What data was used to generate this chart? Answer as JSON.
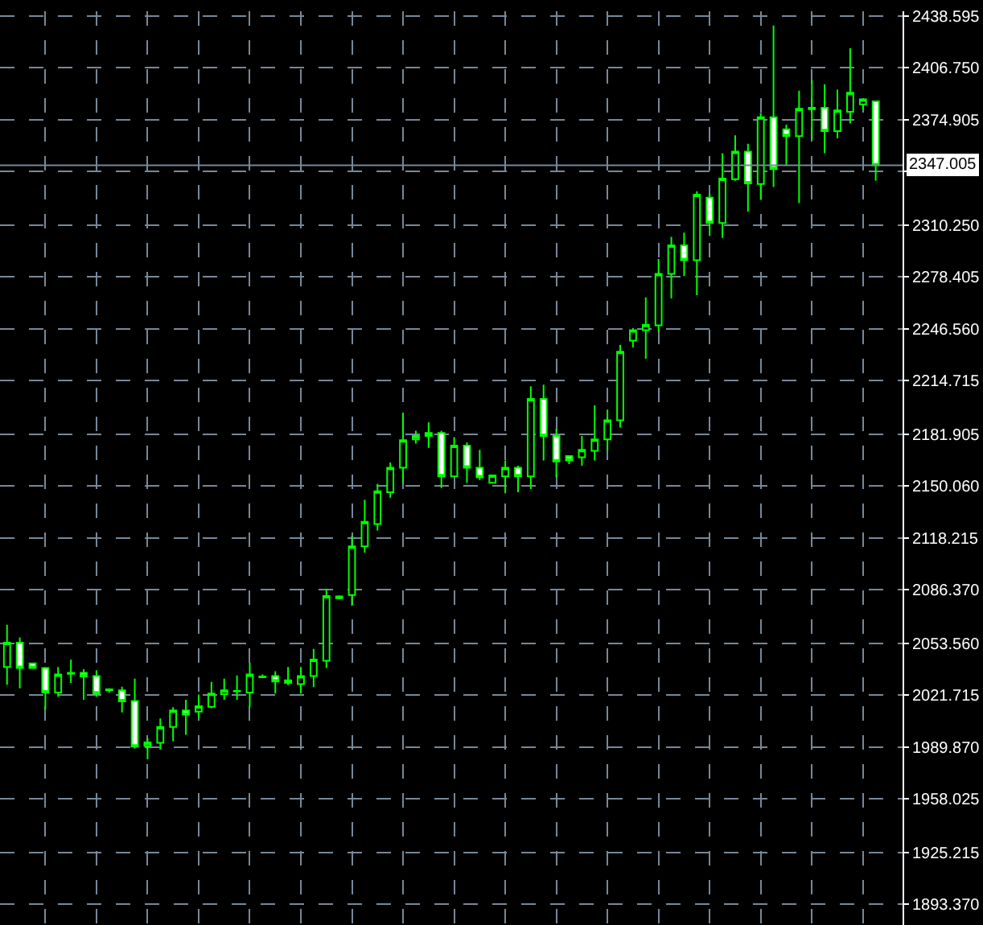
{
  "chart_data": {
    "type": "candlestick",
    "color": "#00ff00",
    "categories": [
      null,
      null,
      null,
      null,
      null,
      null,
      null,
      null,
      null,
      null,
      null,
      null,
      null,
      null,
      null,
      null,
      null,
      null,
      null,
      null,
      null,
      null,
      null,
      null,
      null,
      null,
      null,
      null,
      null,
      null,
      null,
      null,
      null,
      null,
      null,
      null,
      null,
      null,
      null,
      null,
      null,
      null,
      null,
      null,
      null,
      null,
      null,
      null,
      null,
      null,
      null,
      null,
      null,
      null,
      null,
      null,
      null,
      null,
      null,
      null,
      null,
      null,
      null,
      null,
      null,
      null,
      null,
      null,
      null
    ],
    "ohlc": [
      [
        2039.0,
        2065.0,
        2028.0,
        2054.0
      ],
      [
        2054.0,
        2057.2,
        2026.0,
        2038.4
      ],
      [
        2041.3,
        2041.6,
        2038.0,
        2038.4
      ],
      [
        2038.4,
        2039.0,
        2013.0,
        2023.4
      ],
      [
        2023.4,
        2039.0,
        2020.8,
        2034.5
      ],
      [
        2034.8,
        2043.6,
        2029.3,
        2035.4
      ],
      [
        2035.4,
        2037.7,
        2018.9,
        2033.2
      ],
      [
        2033.5,
        2037.1,
        2020.8,
        2022.8
      ],
      [
        2025.4,
        2026.0,
        2023.4,
        2024.7
      ],
      [
        2024.7,
        2027.0,
        2011.1,
        2017.9
      ],
      [
        2018.2,
        2031.9,
        1988.9,
        1990.2
      ],
      [
        1990.6,
        1995.4,
        1982.4,
        1992.8
      ],
      [
        1992.5,
        2007.5,
        1988.3,
        2002.3
      ],
      [
        2002.3,
        2014.3,
        1993.5,
        2012.4
      ],
      [
        2012.4,
        2018.9,
        1997.4,
        2009.8
      ],
      [
        2011.7,
        2022.1,
        2007.5,
        2015.0
      ],
      [
        2014.6,
        2029.9,
        2013.7,
        2022.8
      ],
      [
        2022.4,
        2031.9,
        2018.9,
        2024.7
      ],
      [
        2024.1,
        2033.8,
        2018.9,
        2024.4
      ],
      [
        2023.4,
        2041.6,
        2014.3,
        2034.5
      ],
      [
        2032.8,
        2034.5,
        2032.2,
        2033.2
      ],
      [
        2033.5,
        2036.4,
        2022.8,
        2030.2
      ],
      [
        2030.9,
        2039.0,
        2027.9,
        2029.3
      ],
      [
        2028.6,
        2039.0,
        2022.8,
        2033.5
      ],
      [
        2033.5,
        2050.1,
        2026.7,
        2043.6
      ],
      [
        2042.9,
        2087.0,
        2038.4,
        2082.6
      ],
      [
        2081.3,
        2083.0,
        2080.6,
        2082.3
      ],
      [
        2083.2,
        2119.6,
        2076.7,
        2113.1
      ],
      [
        2113.1,
        2141.7,
        2109.2,
        2128.1
      ],
      [
        2126.8,
        2151.5,
        2122.9,
        2146.9
      ],
      [
        2146.3,
        2164.5,
        2143.0,
        2161.3
      ],
      [
        2161.3,
        2195.1,
        2152.1,
        2178.2
      ],
      [
        2178.8,
        2184.0,
        2176.2,
        2180.8
      ],
      [
        2180.8,
        2189.2,
        2173.6,
        2182.7
      ],
      [
        2182.7,
        2184.0,
        2148.9,
        2156.0
      ],
      [
        2156.0,
        2180.1,
        2156.0,
        2174.9
      ],
      [
        2174.9,
        2176.9,
        2152.1,
        2161.3
      ],
      [
        2161.3,
        2172.3,
        2153.8,
        2155.4
      ],
      [
        2152.1,
        2156.7,
        2152.1,
        2156.7
      ],
      [
        2156.0,
        2165.8,
        2145.7,
        2161.3
      ],
      [
        2161.3,
        2162.6,
        2146.3,
        2156.0
      ],
      [
        2156.0,
        2211.3,
        2148.3,
        2203.5
      ],
      [
        2203.5,
        2212.3,
        2165.8,
        2180.8
      ],
      [
        2180.8,
        2185.3,
        2155.4,
        2165.2
      ],
      [
        2168.5,
        2169.0,
        2163.6,
        2165.8
      ],
      [
        2167.8,
        2180.8,
        2162.6,
        2172.3
      ],
      [
        2171.7,
        2199.6,
        2165.8,
        2178.8
      ],
      [
        2178.8,
        2197.0,
        2171.7,
        2190.5
      ],
      [
        2190.5,
        2236.7,
        2186.0,
        2232.5
      ],
      [
        2239.3,
        2247.1,
        2235.1,
        2245.8
      ],
      [
        2245.8,
        2265.9,
        2228.2,
        2249.1
      ],
      [
        2248.7,
        2289.4,
        2244.8,
        2280.3
      ],
      [
        2280.3,
        2303.0,
        2265.3,
        2297.8
      ],
      [
        2297.8,
        2305.6,
        2279.0,
        2288.7
      ],
      [
        2288.7,
        2331.0,
        2267.3,
        2329.0
      ],
      [
        2327.1,
        2329.7,
        2303.7,
        2311.5
      ],
      [
        2311.5,
        2354.4,
        2302.4,
        2338.8
      ],
      [
        2338.5,
        2365.4,
        2337.5,
        2355.4
      ],
      [
        2355.4,
        2360.2,
        2318.6,
        2335.9
      ],
      [
        2335.5,
        2379.1,
        2325.8,
        2376.5
      ],
      [
        2376.5,
        2432.7,
        2333.6,
        2344.6
      ],
      [
        2369.0,
        2371.9,
        2346.6,
        2364.8
      ],
      [
        2364.8,
        2392.8,
        2323.8,
        2381.7
      ],
      [
        2381.4,
        2399.3,
        2362.8,
        2382.3
      ],
      [
        2382.3,
        2396.7,
        2354.4,
        2368.0
      ],
      [
        2368.0,
        2393.4,
        2363.5,
        2380.7
      ],
      [
        2379.8,
        2418.8,
        2372.6,
        2391.5
      ],
      [
        2384.3,
        2387.5,
        2381.0,
        2387.5
      ],
      [
        2386.2,
        2386.2,
        2337.5,
        2347.0
      ]
    ],
    "ylim": [
      1880.7,
      2441.5
    ],
    "yticks": [
      {
        "value": 1893.37,
        "label": "1893.370"
      },
      1925.215,
      1958.025,
      {
        "value": 1989.87,
        "label": "1989.870"
      },
      2021.715,
      {
        "value": 2053.56,
        "label": "2053.560"
      },
      {
        "value": 2086.37,
        "label": "2086.370"
      },
      2118.215,
      {
        "value": 2150.06,
        "label": "2150.060"
      },
      2181.905,
      2214.715,
      {
        "value": 2246.56,
        "label": "2246.560"
      },
      2278.405,
      {
        "value": 2310.25,
        "label": "2310.250"
      },
      {
        "value": 2343.06,
        "label": null
      },
      2374.905,
      {
        "value": 2406.75,
        "label": "2406.750"
      },
      2438.595
    ],
    "ref_lines": [
      {
        "axis": "y",
        "value": 2347.005,
        "label": "2347.005",
        "color": "#778899"
      }
    ],
    "grid": true,
    "tick_labels": "y"
  }
}
